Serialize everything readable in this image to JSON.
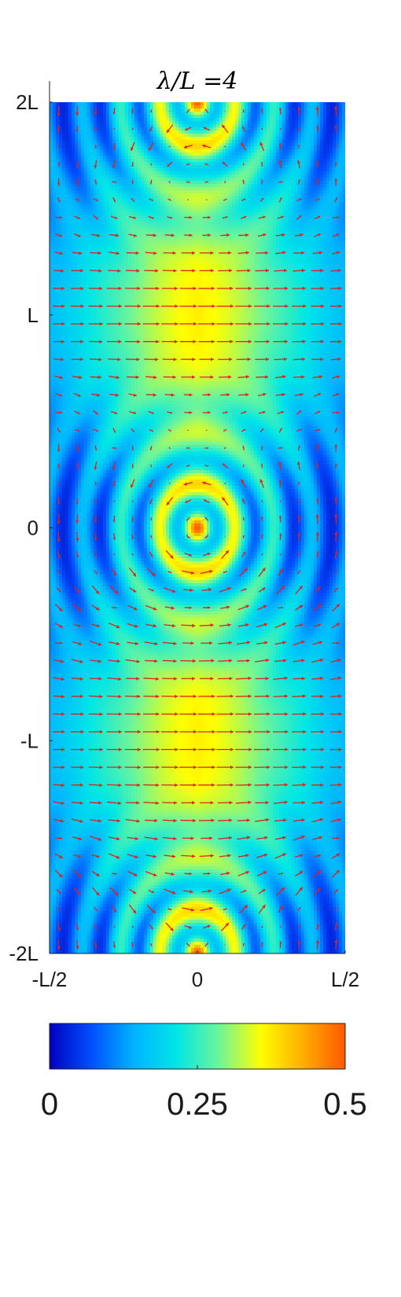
{
  "chart_data": {
    "type": "heatmap",
    "title": "λ/L =4",
    "xlabel": "",
    "ylabel": "",
    "x_ticks": [
      "-L/2",
      "0",
      "L/2"
    ],
    "y_ticks": [
      "2L",
      "L",
      "0",
      "-L",
      "-2L"
    ],
    "xlim": [
      -0.5,
      0.5
    ],
    "ylim": [
      -2,
      2
    ],
    "colorbar": {
      "min": 0,
      "max": 0.5,
      "ticks": [
        "0",
        "0.25",
        "0.5"
      ],
      "colormap": "jet",
      "colormap_stops": [
        "#0000c0",
        "#0050ff",
        "#00b4ff",
        "#00e6e6",
        "#6cf59a",
        "#ffff00",
        "#ffae00",
        "#ff5800"
      ]
    },
    "vector_field": {
      "color": "#e0201a",
      "type": "quiver"
    }
  }
}
